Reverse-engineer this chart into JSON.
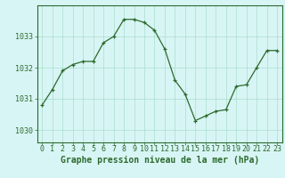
{
  "x": [
    0,
    1,
    2,
    3,
    4,
    5,
    6,
    7,
    8,
    9,
    10,
    11,
    12,
    13,
    14,
    15,
    16,
    17,
    18,
    19,
    20,
    21,
    22,
    23
  ],
  "y": [
    1030.8,
    1031.3,
    1031.9,
    1032.1,
    1032.2,
    1032.2,
    1032.8,
    1033.0,
    1033.55,
    1033.55,
    1033.45,
    1033.2,
    1032.6,
    1031.6,
    1031.15,
    1030.3,
    1030.45,
    1030.6,
    1030.65,
    1031.4,
    1031.45,
    1032.0,
    1032.55,
    1032.55
  ],
  "line_color": "#2d6a2d",
  "marker_color": "#2d6a2d",
  "bg_color": "#d8f5f5",
  "grid_color": "#aaddcc",
  "axis_color": "#2d6a2d",
  "xlabel": "Graphe pression niveau de la mer (hPa)",
  "ylim": [
    1029.6,
    1034.0
  ],
  "yticks": [
    1030,
    1031,
    1032,
    1033
  ],
  "xticks": [
    0,
    1,
    2,
    3,
    4,
    5,
    6,
    7,
    8,
    9,
    10,
    11,
    12,
    13,
    14,
    15,
    16,
    17,
    18,
    19,
    20,
    21,
    22,
    23
  ],
  "xlabel_fontsize": 7.0,
  "tick_fontsize": 6.0
}
